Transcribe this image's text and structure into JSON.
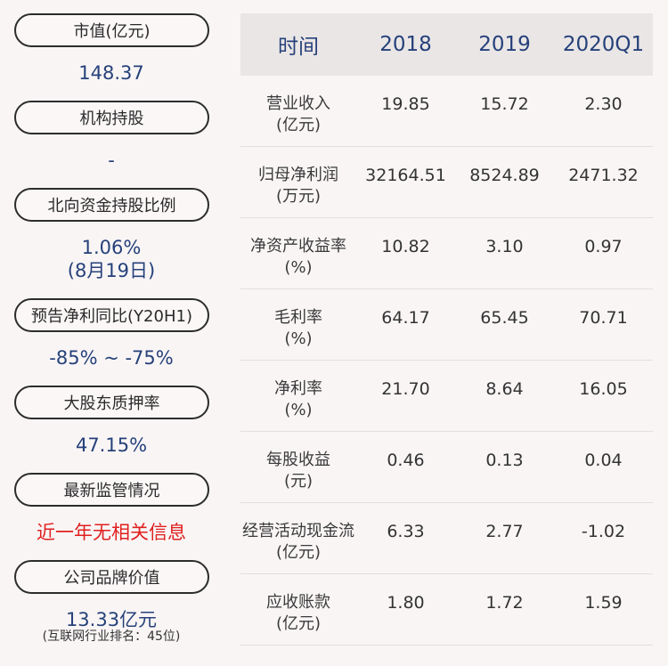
{
  "left": {
    "items": [
      {
        "label": "市值(亿元)",
        "value": "148.37"
      },
      {
        "label": "机构持股",
        "value": "-"
      },
      {
        "label": "北向资金持股比例",
        "value": "1.06%",
        "value2": "(8月19日)"
      },
      {
        "label": "预告净利同比(Y20H1)",
        "value": "-85% ~ -75%"
      },
      {
        "label": "大股东质押率",
        "value": "47.15%"
      },
      {
        "label": "最新监管情况",
        "value": "近一年无相关信息"
      },
      {
        "label": "公司品牌价值",
        "value": "13.33亿元",
        "note": "(互联网行业排名：45位)"
      }
    ]
  },
  "table": {
    "headers": [
      "时间",
      "2018",
      "2019",
      "2020Q1"
    ],
    "rows": [
      {
        "label1": "营业收入",
        "label2": "(亿元)",
        "v": [
          "19.85",
          "15.72",
          "2.30"
        ]
      },
      {
        "label1": "归母净利润",
        "label2": "(万元)",
        "v": [
          "32164.51",
          "8524.89",
          "2471.32"
        ]
      },
      {
        "label1": "净资产收益率",
        "label2": "(%)",
        "v": [
          "10.82",
          "3.10",
          "0.97"
        ]
      },
      {
        "label1": "毛利率",
        "label2": "(%)",
        "v": [
          "64.17",
          "65.45",
          "70.71"
        ]
      },
      {
        "label1": "净利率",
        "label2": "(%)",
        "v": [
          "21.70",
          "8.64",
          "16.05"
        ]
      },
      {
        "label1": "每股收益",
        "label2": "(元)",
        "v": [
          "0.46",
          "0.13",
          "0.04"
        ]
      },
      {
        "label1": "经营活动现金流",
        "label2": "(亿元)",
        "v": [
          "6.33",
          "2.77",
          "-1.02"
        ]
      },
      {
        "label1": "应收账款",
        "label2": "(亿元)",
        "v": [
          "1.80",
          "1.72",
          "1.59"
        ]
      }
    ]
  },
  "colors": {
    "value": "#26417a",
    "alert": "#e01f1f",
    "header_bg": "#eae6e6"
  }
}
